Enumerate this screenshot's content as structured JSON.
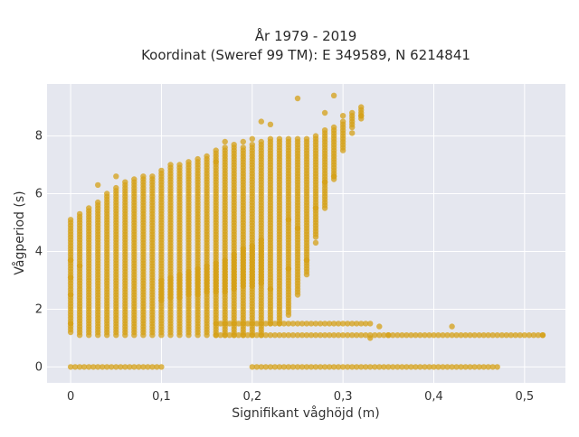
{
  "chart_data": {
    "type": "scatter",
    "title_lines": [
      "År 1979 - 2019",
      "Koordinat (Sweref 99 TM): E 349589, N 6214841"
    ],
    "xlabel": "Signifikant våghöjd (m)",
    "ylabel": "Vågperiod (s)",
    "xlim": [
      -0.026,
      0.545
    ],
    "ylim": [
      -0.55,
      9.8
    ],
    "x_ticks": [
      0,
      0.1,
      0.2,
      0.3,
      0.4,
      0.5
    ],
    "x_tick_labels": [
      "0",
      "0,1",
      "0,2",
      "0,3",
      "0,4",
      "0,5"
    ],
    "y_ticks": [
      0,
      2,
      4,
      6,
      8
    ],
    "y_tick_labels": [
      "0",
      "2",
      "4",
      "6",
      "8"
    ],
    "grid": true,
    "legend": "none",
    "colors": {
      "marker": "#d4a017",
      "plot_bg": "#e5e7ef",
      "grid": "#ffffff"
    },
    "series": [
      {
        "columns": [
          [
            0.0,
            1.2,
            5.1
          ],
          [
            0.01,
            1.1,
            5.3
          ],
          [
            0.02,
            1.1,
            5.5
          ],
          [
            0.03,
            1.1,
            5.7
          ],
          [
            0.04,
            1.1,
            6.0
          ],
          [
            0.05,
            1.1,
            6.2
          ],
          [
            0.06,
            1.1,
            6.4
          ],
          [
            0.07,
            1.1,
            6.5
          ],
          [
            0.08,
            1.1,
            6.5
          ],
          [
            0.09,
            1.1,
            6.6
          ],
          [
            0.1,
            1.1,
            6.8
          ],
          [
            0.11,
            1.1,
            6.9
          ],
          [
            0.12,
            1.1,
            7.0
          ],
          [
            0.13,
            1.1,
            7.1
          ],
          [
            0.14,
            1.1,
            7.2
          ],
          [
            0.15,
            1.1,
            7.3
          ],
          [
            0.16,
            1.1,
            7.5
          ],
          [
            0.17,
            1.1,
            7.6
          ],
          [
            0.18,
            1.1,
            7.6
          ],
          [
            0.19,
            1.1,
            7.6
          ],
          [
            0.2,
            1.1,
            7.7
          ],
          [
            0.21,
            1.1,
            7.8
          ],
          [
            0.22,
            1.5,
            7.9
          ],
          [
            0.23,
            1.5,
            7.9
          ],
          [
            0.24,
            1.8,
            7.9
          ],
          [
            0.25,
            2.5,
            7.9
          ],
          [
            0.26,
            3.2,
            7.9
          ],
          [
            0.27,
            4.5,
            8.0
          ],
          [
            0.28,
            5.5,
            8.2
          ],
          [
            0.29,
            6.5,
            8.3
          ],
          [
            0.3,
            7.5,
            8.5
          ],
          [
            0.31,
            8.3,
            8.8
          ],
          [
            0.32,
            8.6,
            9.0
          ]
        ],
        "lower_branch": [
          [
            0.1,
            2.3,
            3.0
          ],
          [
            0.11,
            2.4,
            3.1
          ],
          [
            0.12,
            2.4,
            3.2
          ],
          [
            0.13,
            2.5,
            3.3
          ],
          [
            0.14,
            2.5,
            3.4
          ],
          [
            0.15,
            2.6,
            3.5
          ],
          [
            0.16,
            2.6,
            3.6
          ],
          [
            0.17,
            2.6,
            3.7
          ],
          [
            0.18,
            2.7,
            3.9
          ],
          [
            0.19,
            2.8,
            4.1
          ],
          [
            0.2,
            2.8,
            4.2
          ],
          [
            0.21,
            2.9,
            4.4
          ]
        ],
        "bands": [
          {
            "y": 1.5,
            "x_from": 0.16,
            "x_to": 0.33
          },
          {
            "y": 1.1,
            "x_from": 0.16,
            "x_to": 0.52
          },
          {
            "y": 0.0,
            "x_from": 0.0,
            "x_to": 0.1
          },
          {
            "y": 0.0,
            "x_from": 0.2,
            "x_to": 0.47
          }
        ],
        "outliers": [
          [
            0.0,
            3.1
          ],
          [
            0.0,
            3.7
          ],
          [
            0.0,
            2.5
          ],
          [
            0.0,
            1.5
          ],
          [
            0.01,
            3.5
          ],
          [
            0.03,
            6.3
          ],
          [
            0.05,
            6.6
          ],
          [
            0.08,
            6.6
          ],
          [
            0.11,
            7.0
          ],
          [
            0.16,
            7.1
          ],
          [
            0.17,
            7.8
          ],
          [
            0.18,
            7.7
          ],
          [
            0.19,
            7.8
          ],
          [
            0.2,
            7.9
          ],
          [
            0.21,
            8.5
          ],
          [
            0.22,
            8.4
          ],
          [
            0.22,
            2.7
          ],
          [
            0.24,
            3.4
          ],
          [
            0.24,
            5.1
          ],
          [
            0.25,
            4.8
          ],
          [
            0.26,
            3.7
          ],
          [
            0.27,
            4.3
          ],
          [
            0.27,
            5.5
          ],
          [
            0.28,
            6.4
          ],
          [
            0.28,
            8.8
          ],
          [
            0.25,
            9.3
          ],
          [
            0.29,
            9.4
          ],
          [
            0.29,
            6.6
          ],
          [
            0.3,
            8.7
          ],
          [
            0.31,
            8.1
          ],
          [
            0.32,
            8.7
          ],
          [
            0.33,
            1.0
          ],
          [
            0.34,
            1.4
          ],
          [
            0.35,
            1.1
          ],
          [
            0.42,
            1.4
          ],
          [
            0.52,
            1.1
          ]
        ]
      }
    ]
  }
}
